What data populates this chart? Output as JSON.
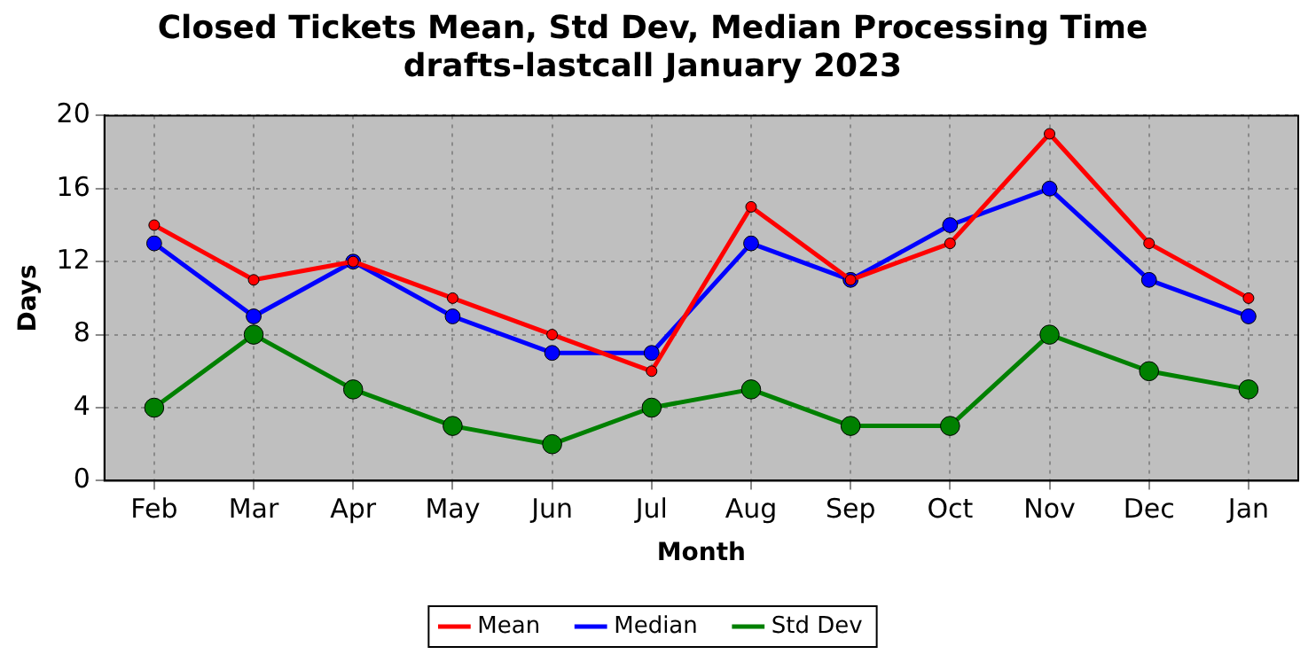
{
  "chart_data": {
    "type": "line",
    "title": "Closed Tickets Mean, Std Dev, Median Processing Time",
    "subtitle": "drafts-lastcall January 2023",
    "xlabel": "Month",
    "ylabel": "Days",
    "categories": [
      "Feb",
      "Mar",
      "Apr",
      "May",
      "Jun",
      "Jul",
      "Aug",
      "Sep",
      "Oct",
      "Nov",
      "Dec",
      "Jan"
    ],
    "series": [
      {
        "name": "Mean",
        "color": "#ff0000",
        "values": [
          14,
          11,
          12,
          10,
          8,
          6,
          15,
          11,
          13,
          19,
          13,
          10
        ]
      },
      {
        "name": "Median",
        "color": "#0000ff",
        "values": [
          13,
          9,
          12,
          9,
          7,
          7,
          13,
          11,
          14,
          16,
          11,
          9
        ]
      },
      {
        "name": "Std Dev",
        "color": "#008000",
        "values": [
          4,
          8,
          5,
          3,
          2,
          4,
          5,
          3,
          3,
          8,
          6,
          5
        ]
      }
    ],
    "ylim": [
      0,
      20
    ],
    "yticks": [
      0,
      4,
      8,
      12,
      16,
      20
    ],
    "grid": true,
    "legend": "bottom",
    "marker": "circle",
    "line_style": "solid"
  }
}
